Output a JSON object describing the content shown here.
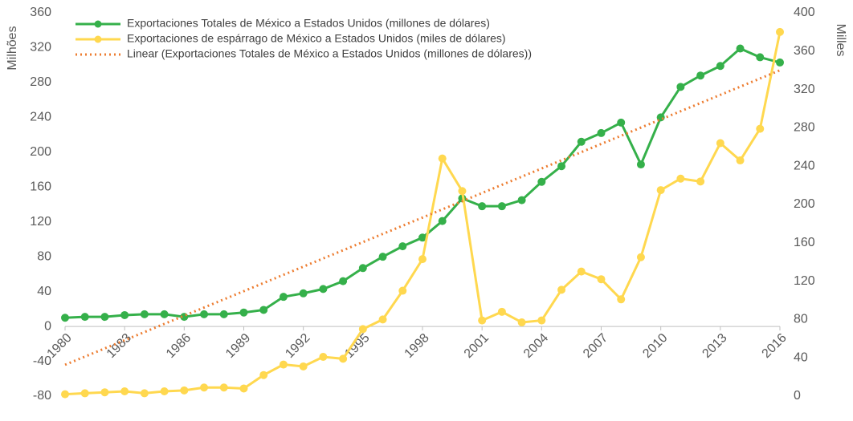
{
  "chart_data": {
    "type": "line",
    "y_label": "Milhões",
    "y2_label": "Milles",
    "x": [
      1980,
      1981,
      1982,
      1983,
      1984,
      1985,
      1986,
      1987,
      1988,
      1989,
      1990,
      1991,
      1992,
      1993,
      1994,
      1995,
      1996,
      1997,
      1998,
      1999,
      2000,
      2001,
      2002,
      2003,
      2004,
      2005,
      2006,
      2007,
      2008,
      2009,
      2010,
      2011,
      2012,
      2013,
      2014,
      2015,
      2016
    ],
    "xlim": [
      1980,
      2016
    ],
    "xticks": [
      1980,
      1983,
      1986,
      1989,
      1992,
      1995,
      1998,
      2001,
      2004,
      2007,
      2010,
      2013,
      2016
    ],
    "ylim": [
      -80,
      360
    ],
    "yticks": [
      -80,
      -40,
      0,
      40,
      80,
      120,
      160,
      200,
      240,
      280,
      320,
      360
    ],
    "y2lim": [
      0,
      400
    ],
    "y2ticks": [
      0,
      40,
      80,
      120,
      160,
      200,
      240,
      280,
      320,
      360,
      400
    ],
    "series": [
      {
        "name": "Exportaciones Totales de México a Estados Unidos (millones de dólares)",
        "color": "#35b04a",
        "values": [
          10,
          11,
          11,
          13,
          14,
          14,
          11,
          14,
          14,
          16,
          19,
          34,
          38,
          43,
          52,
          67,
          80,
          92,
          102,
          121,
          147,
          138,
          138,
          145,
          166,
          184,
          212,
          222,
          234,
          186,
          240,
          275,
          288,
          299,
          319,
          309,
          303
        ]
      },
      {
        "name": "Exportaciones de espárrago de México a Estados Unidos (miles de dólares)",
        "color": "#ffd84f",
        "axis": "y2",
        "values": [
          2,
          3,
          4,
          5,
          3,
          5,
          6,
          9,
          9,
          8,
          22,
          33,
          31,
          41,
          39,
          70,
          80,
          110,
          143,
          248,
          214,
          79,
          88,
          77,
          79,
          111,
          130,
          122,
          101,
          145,
          215,
          227,
          224,
          264,
          246,
          279,
          380
        ]
      },
      {
        "name": "Linear (Exportaciones Totales de México a Estados Unidos (millones de dólares))",
        "color": "#ed7d31",
        "dotted": true,
        "x": [
          1980,
          2016
        ],
        "values": [
          -44,
          294
        ]
      }
    ]
  }
}
